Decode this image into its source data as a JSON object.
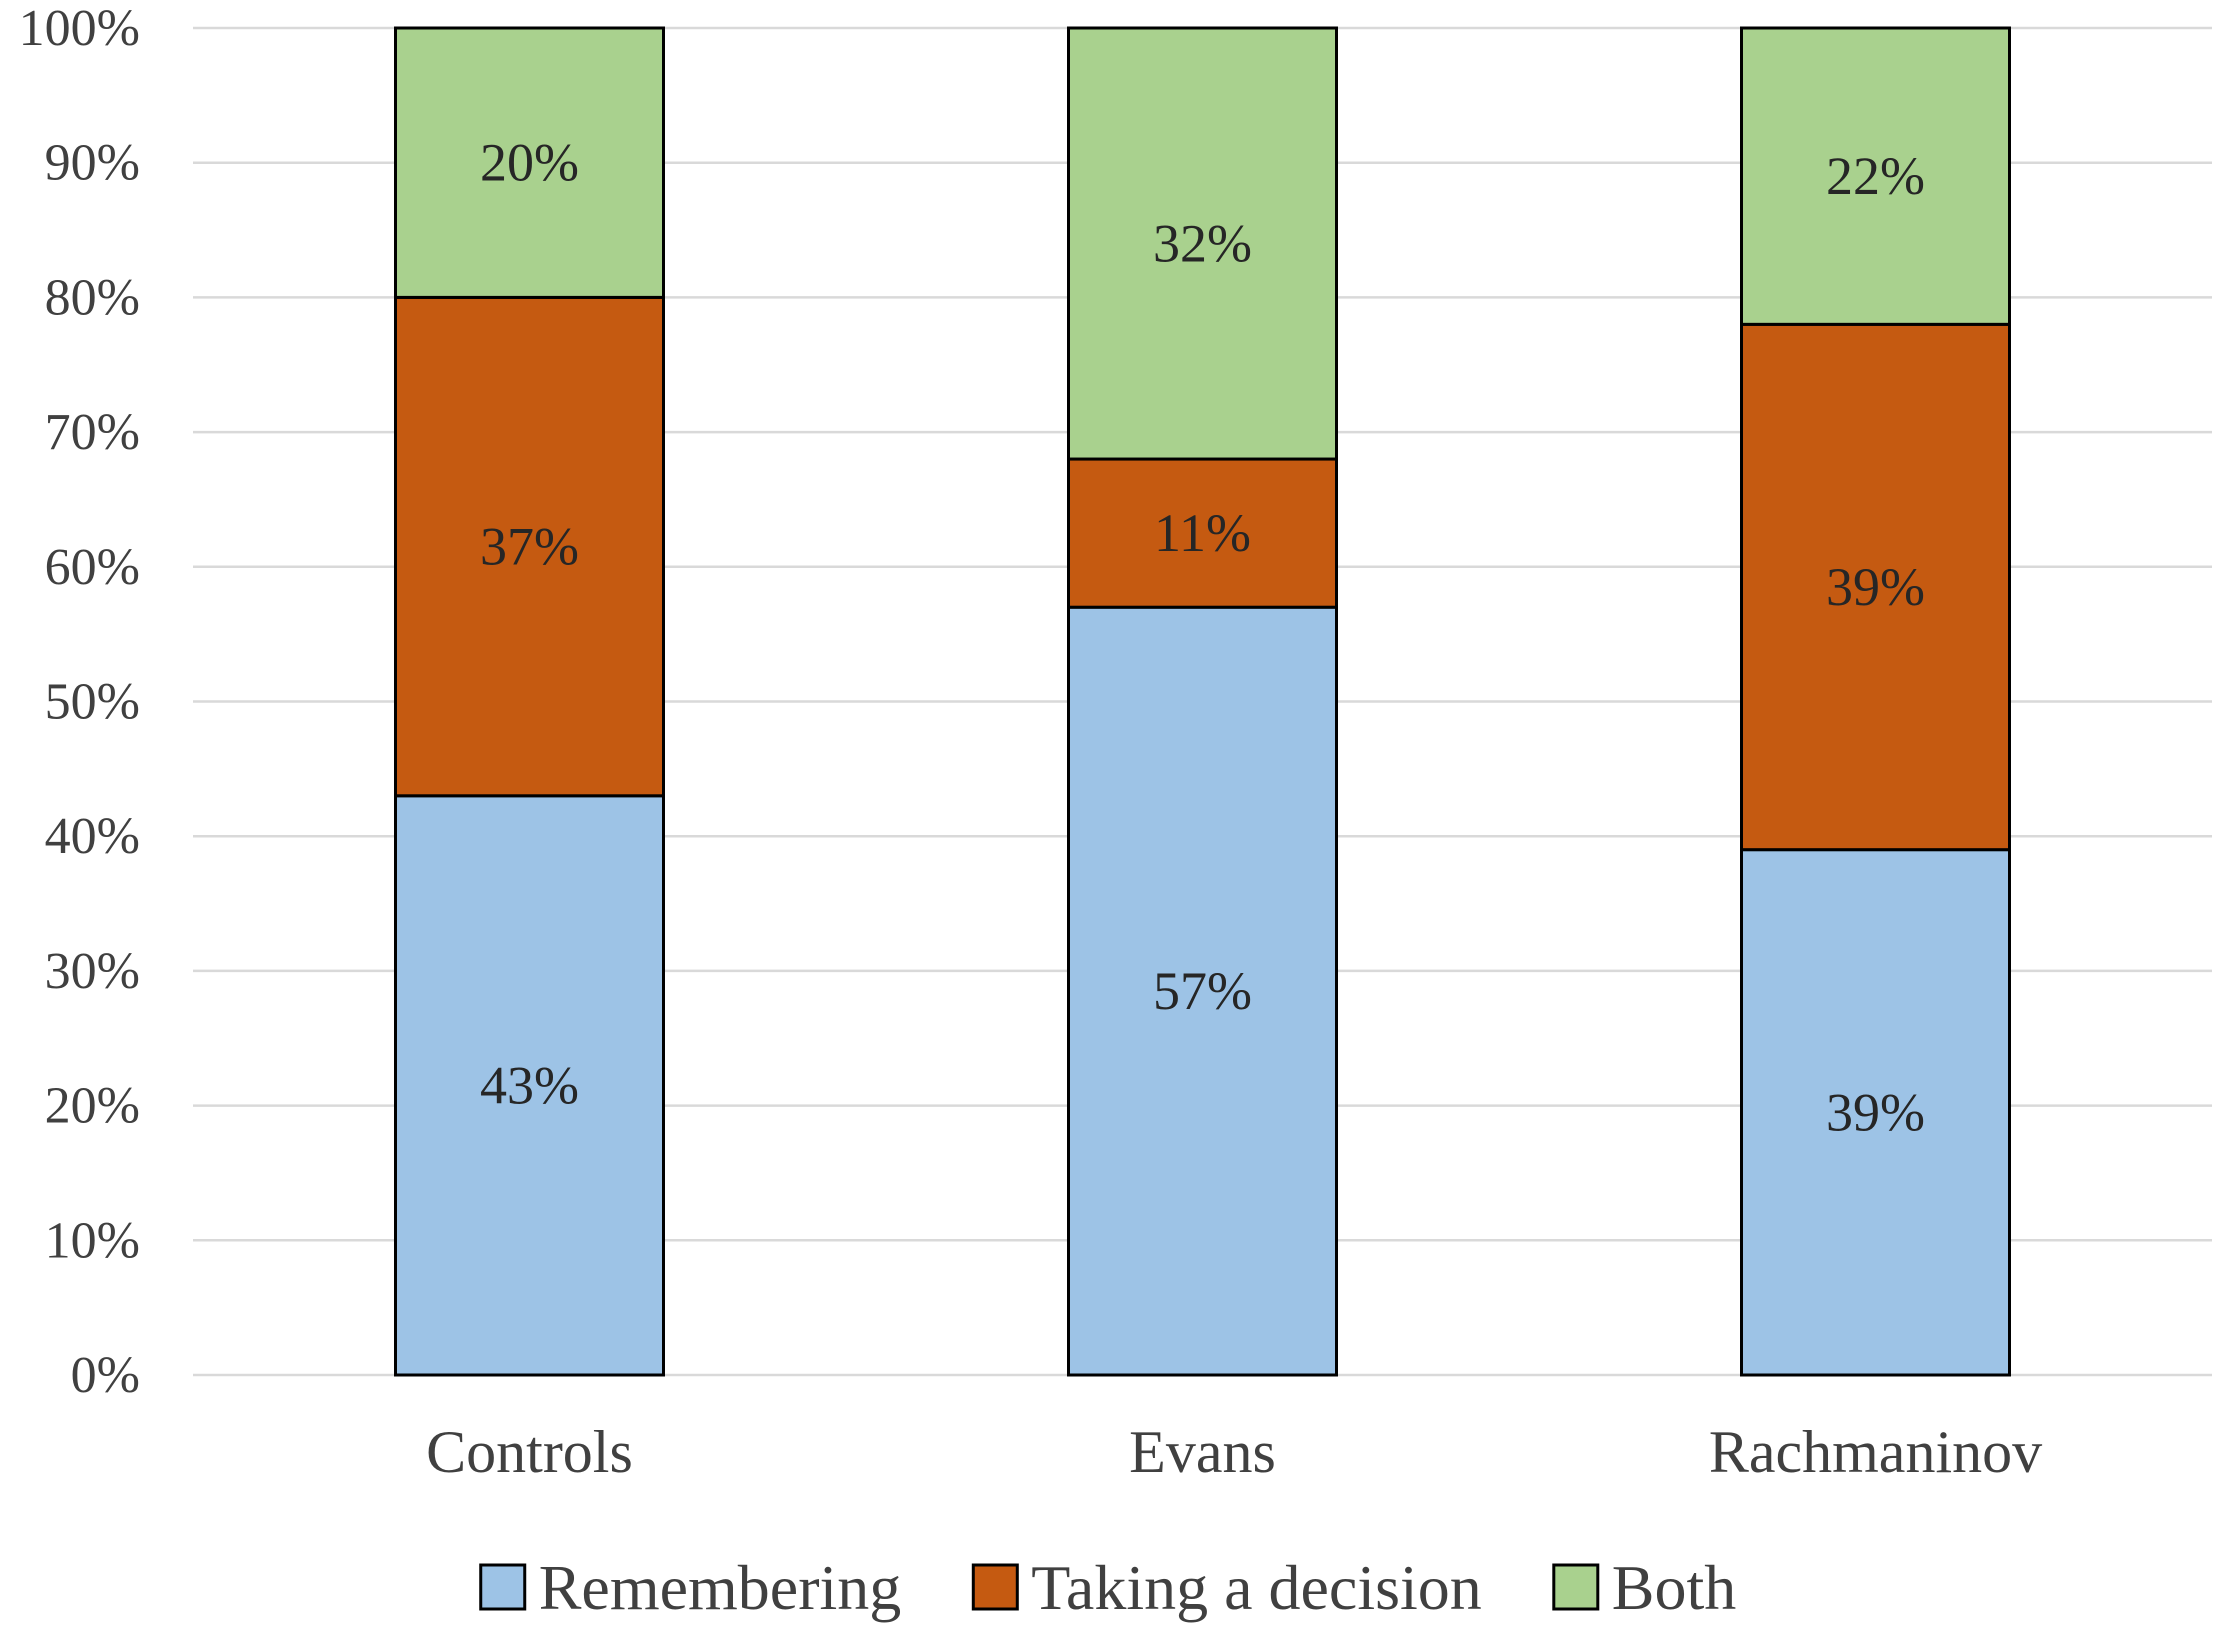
{
  "chart_data": {
    "type": "bar",
    "stacked": true,
    "title": "",
    "xlabel": "",
    "ylabel": "",
    "ylim": [
      0,
      100
    ],
    "yticks": [
      "0%",
      "10%",
      "20%",
      "30%",
      "40%",
      "50%",
      "60%",
      "70%",
      "80%",
      "90%",
      "100%"
    ],
    "grid": true,
    "legend_position": "bottom",
    "categories": [
      "Controls",
      "Evans",
      "Rachmaninov"
    ],
    "series": [
      {
        "name": "Remembering",
        "color": "#9DC3E6",
        "values": [
          43,
          57,
          39
        ],
        "labels": [
          "43%",
          "57%",
          "39%"
        ]
      },
      {
        "name": "Taking a decision",
        "color": "#C55A11",
        "values": [
          37,
          11,
          39
        ],
        "labels": [
          "37%",
          "11%",
          "39%"
        ]
      },
      {
        "name": "Both",
        "color": "#A9D18E",
        "values": [
          20,
          32,
          22
        ],
        "labels": [
          "20%",
          "32%",
          "22%"
        ]
      }
    ]
  }
}
